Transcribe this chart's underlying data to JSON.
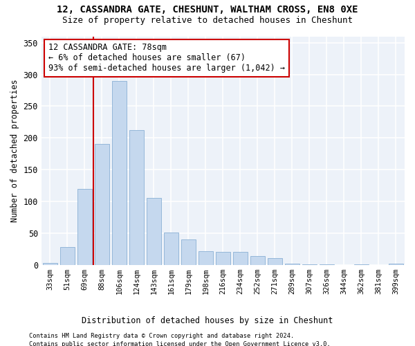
{
  "title1": "12, CASSANDRA GATE, CHESHUNT, WALTHAM CROSS, EN8 0XE",
  "title2": "Size of property relative to detached houses in Cheshunt",
  "xlabel": "Distribution of detached houses by size in Cheshunt",
  "ylabel": "Number of detached properties",
  "bar_color": "#c5d8ee",
  "bar_edge_color": "#8ab0d4",
  "categories": [
    "33sqm",
    "51sqm",
    "69sqm",
    "88sqm",
    "106sqm",
    "124sqm",
    "143sqm",
    "161sqm",
    "179sqm",
    "198sqm",
    "216sqm",
    "234sqm",
    "252sqm",
    "271sqm",
    "289sqm",
    "307sqm",
    "326sqm",
    "344sqm",
    "362sqm",
    "381sqm",
    "399sqm"
  ],
  "values": [
    3,
    28,
    120,
    190,
    290,
    212,
    105,
    51,
    40,
    21,
    20,
    20,
    14,
    11,
    2,
    1,
    1,
    0,
    1,
    0,
    2
  ],
  "vline_color": "#cc0000",
  "vline_bin_index": 3,
  "annotation_text": "12 CASSANDRA GATE: 78sqm\n← 6% of detached houses are smaller (67)\n93% of semi-detached houses are larger (1,042) →",
  "annotation_box_edgecolor": "#cc0000",
  "ylim": [
    0,
    360
  ],
  "yticks": [
    0,
    50,
    100,
    150,
    200,
    250,
    300,
    350
  ],
  "footer1": "Contains HM Land Registry data © Crown copyright and database right 2024.",
  "footer2": "Contains public sector information licensed under the Open Government Licence v3.0.",
  "background_color": "#edf2f9",
  "grid_color": "#ffffff",
  "figwidth": 6.0,
  "figheight": 5.0,
  "dpi": 100
}
